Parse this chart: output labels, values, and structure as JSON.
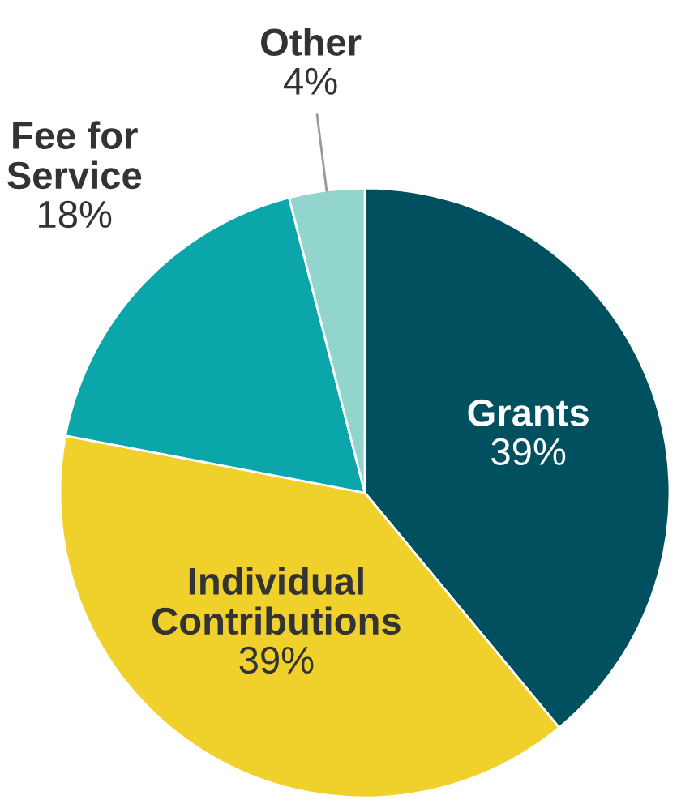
{
  "chart_data": {
    "type": "pie",
    "categories": [
      "Grants",
      "Individual Contributions",
      "Fee for Service",
      "Other"
    ],
    "values": [
      39,
      39,
      18,
      4
    ],
    "value_labels": [
      "39%",
      "39%",
      "18%",
      "4%"
    ],
    "colors": [
      "#00505f",
      "#f0d12c",
      "#0aa6a9",
      "#91d5cd"
    ]
  }
}
